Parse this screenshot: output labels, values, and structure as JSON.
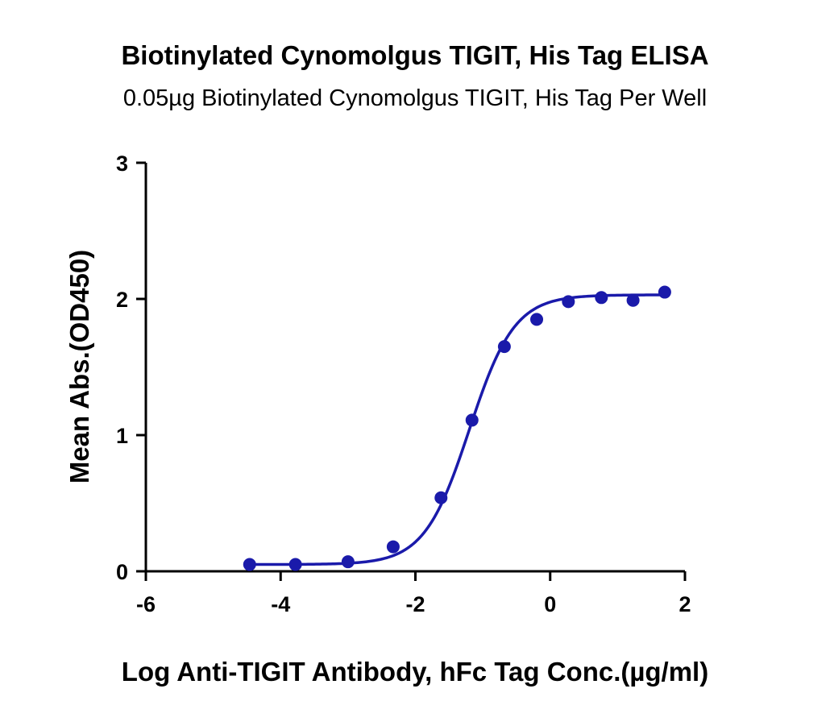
{
  "chart_data": {
    "type": "scatter",
    "title": "Biotinylated Cynomolgus TIGIT, His Tag ELISA",
    "subtitle": "0.05µg Biotinylated Cynomolgus TIGIT, His Tag Per Well",
    "xlabel": "Log Anti-TIGIT Antibody, hFc Tag Conc.(µg/ml)",
    "ylabel": "Mean Abs.(OD450)",
    "xlim": [
      -6,
      2
    ],
    "ylim": [
      0,
      3
    ],
    "x_ticks": [
      -6,
      -4,
      -2,
      0,
      2
    ],
    "x_tick_labels": [
      "-6",
      "-4",
      "-2",
      "0",
      "2"
    ],
    "y_ticks": [
      0,
      1,
      2,
      3
    ],
    "y_tick_labels": [
      "0",
      "1",
      "2",
      "3"
    ],
    "grid": false,
    "series": [
      {
        "color": "#1a1aaa",
        "points": [
          {
            "x": -4.46,
            "y": 0.05
          },
          {
            "x": -3.78,
            "y": 0.05
          },
          {
            "x": -3.0,
            "y": 0.07
          },
          {
            "x": -2.33,
            "y": 0.18
          },
          {
            "x": -1.62,
            "y": 0.54
          },
          {
            "x": -1.16,
            "y": 1.11
          },
          {
            "x": -0.68,
            "y": 1.65
          },
          {
            "x": -0.2,
            "y": 1.85
          },
          {
            "x": 0.27,
            "y": 1.98
          },
          {
            "x": 0.76,
            "y": 2.01
          },
          {
            "x": 1.23,
            "y": 1.99
          },
          {
            "x": 1.7,
            "y": 2.05
          }
        ],
        "fit": {
          "model": "4PL",
          "bottom": 0.05,
          "top": 2.03,
          "logEC50": -1.2,
          "hill": 1.3,
          "x_range": [
            -4.46,
            1.7
          ]
        }
      }
    ]
  }
}
